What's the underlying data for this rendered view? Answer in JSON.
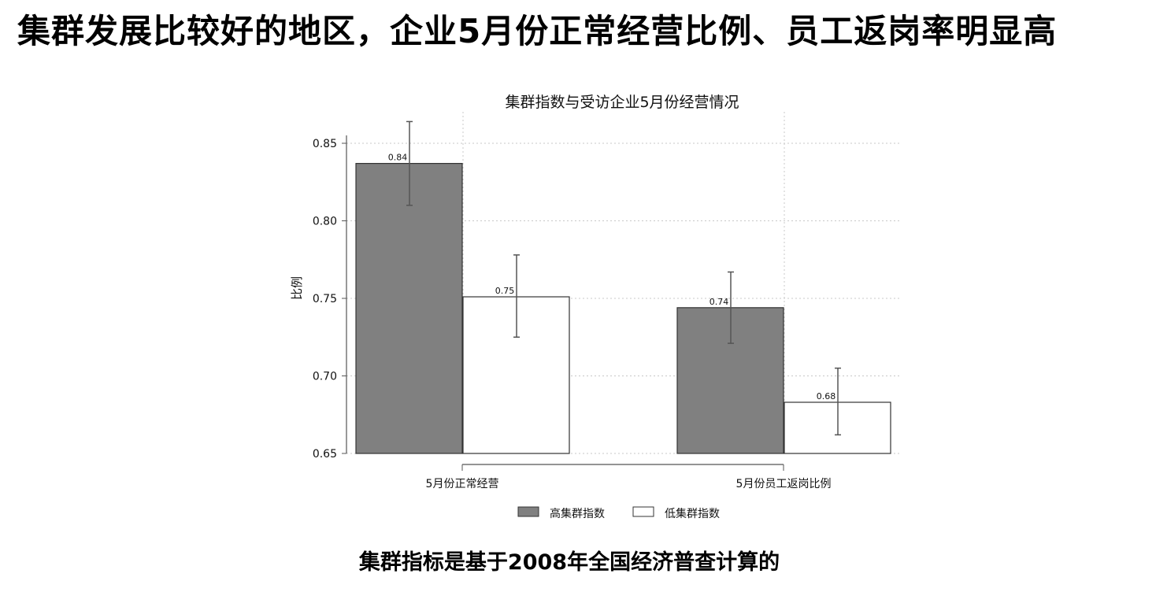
{
  "slide": {
    "title": "集群发展比较好的地区，企业5月份正常经营比例、员工返岗率明显高",
    "footnote": "集群指标是基于2008年全国经济普查计算的"
  },
  "chart_data": {
    "type": "bar",
    "title": "集群指数与受访企业5月份经营情况",
    "ylabel": "比例",
    "xlabel": "",
    "categories": [
      "5月份正常经营",
      "5月份员工返岗比例"
    ],
    "series": [
      {
        "name": "高集群指数",
        "color": "#808080",
        "values": [
          0.837,
          0.744
        ],
        "labels": [
          "0.84",
          "0.74"
        ],
        "error_low": [
          0.81,
          0.721
        ],
        "error_high": [
          0.864,
          0.767
        ]
      },
      {
        "name": "低集群指数",
        "color": "#ffffff",
        "values": [
          0.751,
          0.683
        ],
        "labels": [
          "0.75",
          "0.68"
        ],
        "error_low": [
          0.725,
          0.662
        ],
        "error_high": [
          0.778,
          0.705
        ]
      }
    ],
    "ylim": [
      0.65,
      0.87
    ],
    "yticks": [
      0.65,
      0.7,
      0.75,
      0.8,
      0.85
    ],
    "ytick_labels": [
      "0.65",
      "0.70",
      "0.75",
      "0.80",
      "0.85"
    ],
    "grid": true,
    "legend_position": "bottom"
  }
}
